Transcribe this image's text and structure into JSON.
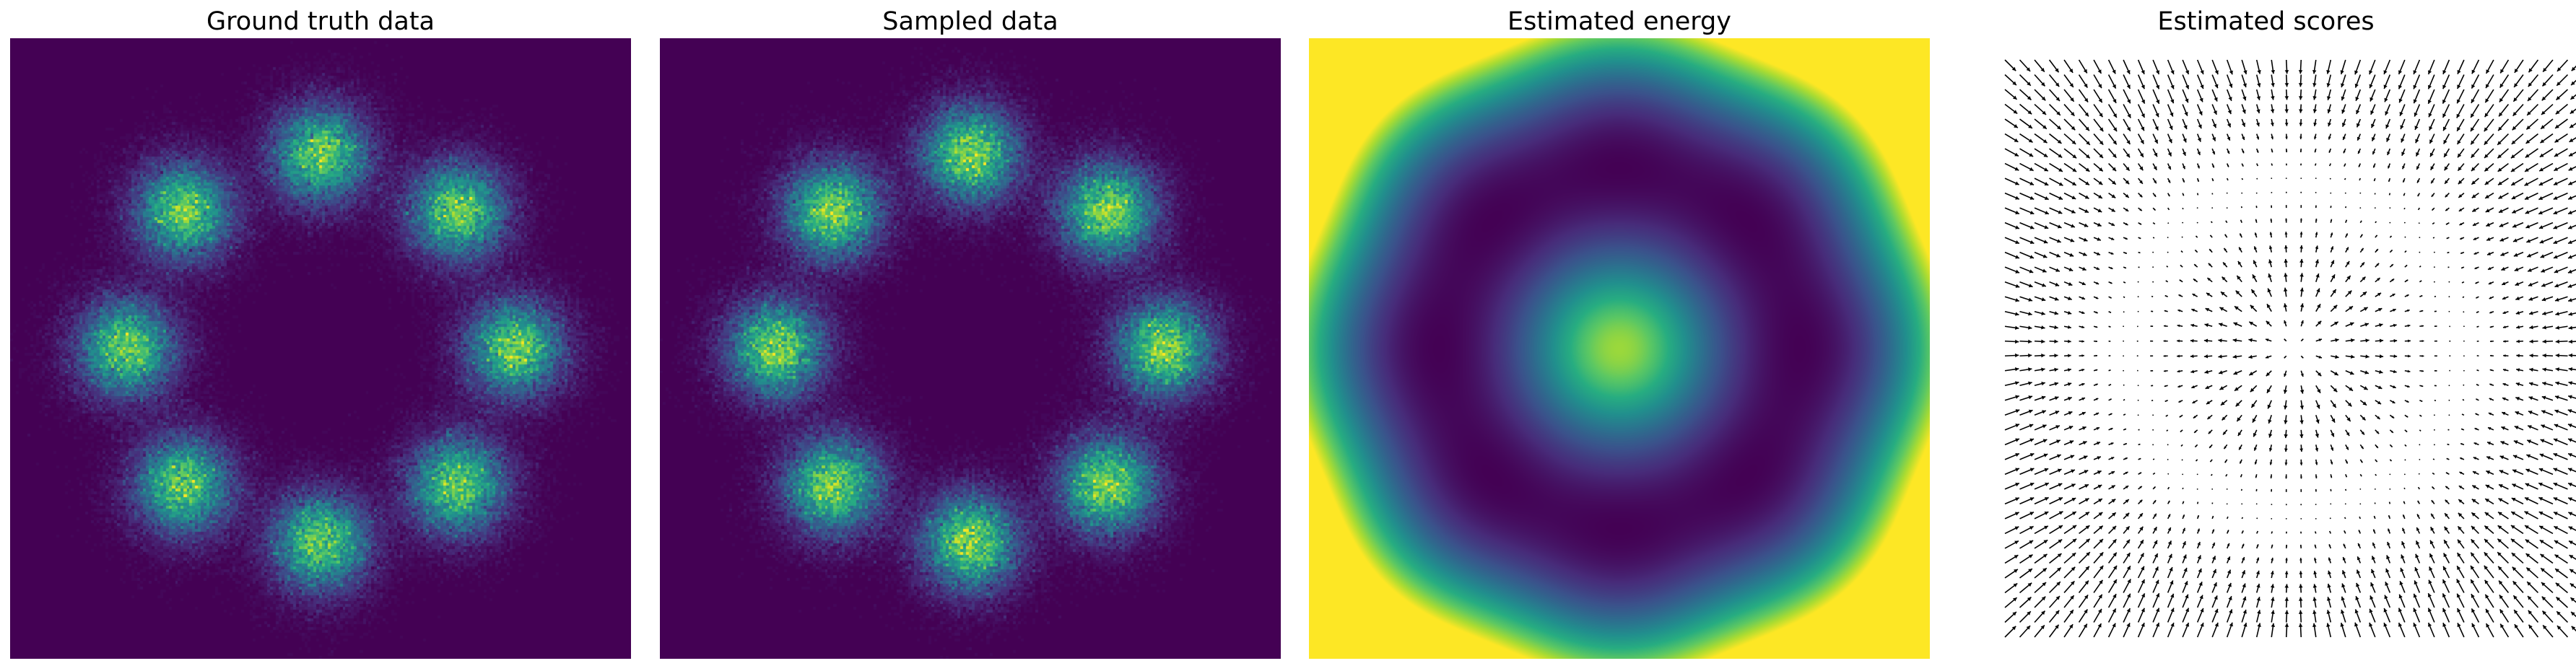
{
  "chart_data": [
    {
      "type": "heatmap",
      "title": "Ground truth data",
      "axes": "off",
      "colormap": "viridis",
      "mixture": {
        "num_modes": 8,
        "ring_radius": 2.5,
        "mode_std": 0.4,
        "angles_deg": [
          0,
          45,
          90,
          135,
          180,
          225,
          270,
          315
        ]
      },
      "xlim": [
        -4,
        4
      ],
      "ylim": [
        -4,
        4
      ],
      "seed": 11
    },
    {
      "type": "heatmap",
      "title": "Sampled data",
      "axes": "off",
      "colormap": "viridis",
      "mixture": {
        "num_modes": 8,
        "ring_radius": 2.5,
        "mode_std": 0.4,
        "angles_deg": [
          0,
          45,
          90,
          135,
          180,
          225,
          270,
          315
        ]
      },
      "xlim": [
        -4,
        4
      ],
      "ylim": [
        -4,
        4
      ],
      "seed": 29
    },
    {
      "type": "heatmap",
      "title": "Estimated energy",
      "axes": "off",
      "colormap": "viridis",
      "field": "estimated energy of 8-mode ring mixture",
      "xlim": [
        -4,
        4
      ],
      "ylim": [
        -4,
        4
      ]
    },
    {
      "type": "quiver",
      "title": "Estimated scores",
      "axes": "off",
      "grid": [
        40,
        40
      ],
      "xlim": [
        -4,
        4
      ],
      "ylim": [
        -4,
        4
      ],
      "arrow_color": "#000000"
    }
  ],
  "colors": {
    "viridis_low": "#440154",
    "viridis_mid": "#21918c",
    "viridis_high": "#fde725",
    "background": "#ffffff"
  }
}
